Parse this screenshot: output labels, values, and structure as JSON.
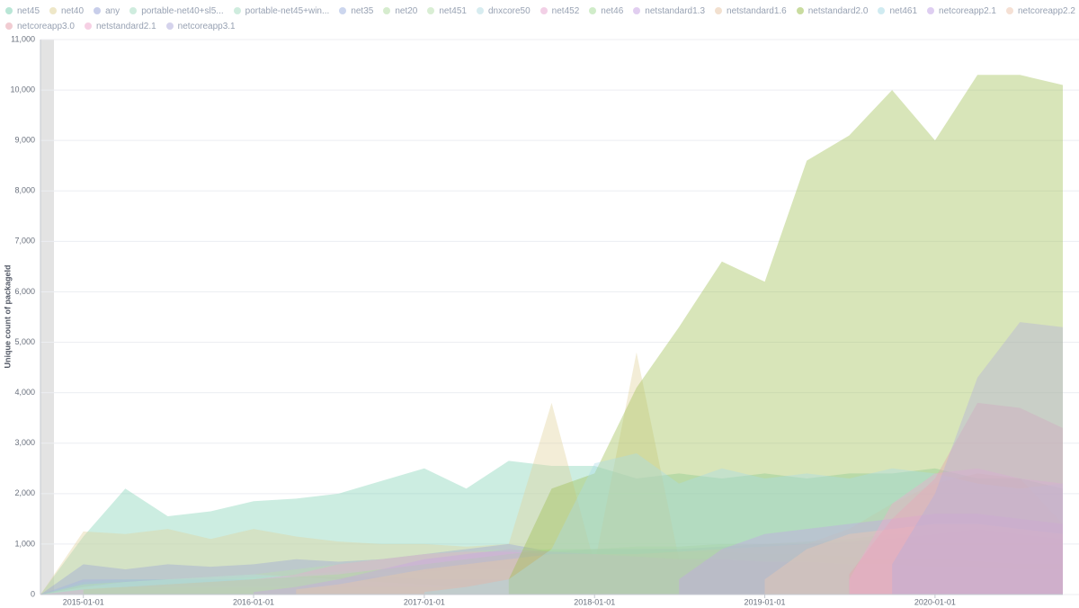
{
  "chart_data": {
    "type": "area",
    "y_label": "Unique count of packageId",
    "x": [
      "2014-10-01",
      "2015-01-01",
      "2015-04-01",
      "2015-07-01",
      "2015-10-01",
      "2016-01-01",
      "2016-04-01",
      "2016-07-01",
      "2016-10-01",
      "2017-01-01",
      "2017-04-01",
      "2017-07-01",
      "2017-10-01",
      "2018-01-01",
      "2018-04-01",
      "2018-07-01",
      "2018-10-01",
      "2019-01-01",
      "2019-04-01",
      "2019-07-01",
      "2019-10-01",
      "2020-01-01",
      "2020-04-01",
      "2020-07-01",
      "2020-10-01"
    ],
    "xlim": [
      "2014-10-01",
      "2020-10-01"
    ],
    "xticks": [
      "2015-01-01",
      "2016-01-01",
      "2017-01-01",
      "2018-01-01",
      "2019-01-01",
      "2020-01-01"
    ],
    "ylim": [
      0,
      11000
    ],
    "yticks": [
      0,
      {
        "value": 1000,
        "label": "1,000"
      },
      {
        "value": 2000,
        "label": "2,000"
      },
      {
        "value": 3000,
        "label": "3,000"
      },
      {
        "value": 4000,
        "label": "4,000"
      },
      {
        "value": 5000,
        "label": "5,000"
      },
      {
        "value": 6000,
        "label": "6,000"
      },
      {
        "value": 7000,
        "label": "7,000"
      },
      {
        "value": 8000,
        "label": "8,000"
      },
      {
        "value": 9000,
        "label": "9,000"
      },
      {
        "value": 10000,
        "label": "10,000"
      },
      {
        "value": 11000,
        "label": "11,000"
      }
    ],
    "grid": true,
    "series": [
      {
        "name": "net45",
        "color": "#7fd1b4",
        "values": [
          0,
          1150,
          2100,
          1550,
          1650,
          1850,
          1900,
          2000,
          2250,
          2500,
          2100,
          2650,
          2550,
          2550,
          2300,
          2400,
          2300,
          2400,
          2300,
          2400,
          2400,
          2500,
          2300,
          2300,
          2100
        ]
      },
      {
        "name": "net40",
        "color": "#e0d39b",
        "values": [
          0,
          1250,
          1200,
          1300,
          1100,
          1300,
          1150,
          1050,
          1000,
          1000,
          950,
          1000,
          3800,
          600,
          4800,
          700,
          600,
          500,
          500,
          400,
          400,
          400,
          300,
          300,
          300
        ]
      },
      {
        "name": "any",
        "color": "#9aa6d8",
        "values": [
          0,
          600,
          500,
          600,
          550,
          600,
          700,
          650,
          700,
          800,
          900,
          1000,
          850,
          900,
          900,
          900,
          950,
          1000,
          1000,
          1050,
          1100,
          1200,
          1300,
          1200,
          1100
        ]
      },
      {
        "name": "portable-net40+sl5...",
        "color": "#a8dcc2",
        "values": [
          0,
          250,
          300,
          300,
          300,
          350,
          400,
          450,
          500,
          500,
          550,
          550,
          500,
          450,
          400,
          400,
          350,
          350,
          300,
          300,
          300,
          250,
          250,
          200,
          200
        ]
      },
      {
        "name": "portable-net45+win...",
        "color": "#a8dcc2",
        "values": [
          0,
          200,
          250,
          300,
          300,
          350,
          400,
          400,
          450,
          450,
          500,
          500,
          450,
          400,
          400,
          350,
          350,
          300,
          300,
          300,
          250,
          250,
          200,
          200,
          200
        ]
      },
      {
        "name": "net35",
        "color": "#a3b5e0",
        "values": [
          0,
          300,
          300,
          300,
          300,
          300,
          350,
          350,
          350,
          300,
          300,
          300,
          300,
          300,
          300,
          250,
          250,
          250,
          250,
          200,
          200,
          200,
          200,
          200,
          200
        ]
      },
      {
        "name": "net20",
        "color": "#b4dca6",
        "values": [
          0,
          150,
          150,
          150,
          150,
          150,
          150,
          150,
          150,
          150,
          150,
          150,
          150,
          150,
          150,
          100,
          100,
          100,
          100,
          100,
          100,
          100,
          100,
          100,
          100
        ]
      },
      {
        "name": "net451",
        "color": "#b9e0b0",
        "values": [
          0,
          200,
          250,
          300,
          350,
          400,
          500,
          600,
          700,
          800,
          850,
          900,
          900,
          900,
          900,
          850,
          850,
          800,
          800,
          750,
          700,
          700,
          650,
          600,
          600
        ]
      },
      {
        "name": "dnxcore50",
        "color": "#b6dde3",
        "values": [
          0,
          150,
          250,
          300,
          350,
          400,
          350,
          300,
          250,
          200,
          150,
          100,
          100,
          100,
          50,
          50,
          50,
          50,
          50,
          50,
          50,
          50,
          50,
          50,
          50
        ]
      },
      {
        "name": "net452",
        "color": "#e8a9d2",
        "values": [
          0,
          100,
          150,
          200,
          250,
          300,
          400,
          600,
          700,
          800,
          850,
          850,
          800,
          800,
          750,
          700,
          700,
          650,
          650,
          600,
          600,
          550,
          550,
          500,
          500
        ]
      },
      {
        "name": "net46",
        "color": "#a9dc9c",
        "values": [
          null,
          100,
          150,
          200,
          250,
          300,
          350,
          400,
          500,
          600,
          700,
          800,
          900,
          900,
          950,
          950,
          1000,
          1000,
          1050,
          1100,
          1200,
          1200,
          1150,
          1100,
          1000
        ]
      },
      {
        "name": "netstandard1.3",
        "color": "#c9a5e3",
        "values": [
          null,
          null,
          null,
          null,
          null,
          50,
          150,
          300,
          500,
          700,
          800,
          900,
          850,
          800,
          750,
          700,
          700,
          650,
          650,
          600,
          600,
          550,
          550,
          500,
          500
        ]
      },
      {
        "name": "netstandard1.6",
        "color": "#e8c7a8",
        "values": [
          null,
          null,
          null,
          null,
          null,
          null,
          100,
          200,
          350,
          500,
          600,
          700,
          800,
          800,
          800,
          850,
          900,
          950,
          1000,
          1300,
          1800,
          2200,
          2400,
          2300,
          1400
        ]
      },
      {
        "name": "netstandard2.0",
        "color": "#9dbf50",
        "values": [
          null,
          null,
          null,
          null,
          null,
          null,
          null,
          null,
          null,
          null,
          null,
          300,
          2100,
          2400,
          4100,
          5300,
          6600,
          6200,
          8600,
          9100,
          10000,
          9000,
          10300,
          10300,
          10100
        ]
      },
      {
        "name": "net461",
        "color": "#a9dbe6",
        "values": [
          null,
          null,
          null,
          null,
          null,
          null,
          null,
          null,
          null,
          50,
          150,
          300,
          900,
          2600,
          2800,
          2200,
          2500,
          2300,
          2400,
          2300,
          2500,
          2400,
          2200,
          2100,
          2200
        ]
      },
      {
        "name": "netcoreapp2.1",
        "color": "#c2a6e6",
        "values": [
          null,
          null,
          null,
          null,
          null,
          null,
          null,
          null,
          null,
          null,
          null,
          null,
          null,
          null,
          null,
          300,
          900,
          1200,
          1300,
          1400,
          1500,
          1600,
          1600,
          1500,
          1400
        ]
      },
      {
        "name": "netcoreapp2.2",
        "color": "#edc7b1",
        "values": [
          null,
          null,
          null,
          null,
          null,
          null,
          null,
          null,
          null,
          null,
          null,
          null,
          null,
          null,
          null,
          null,
          null,
          300,
          900,
          1200,
          1300,
          1400,
          1400,
          1300,
          1200
        ]
      },
      {
        "name": "netcoreapp3.0",
        "color": "#e6a3ad",
        "values": [
          null,
          null,
          null,
          null,
          null,
          null,
          null,
          null,
          null,
          null,
          null,
          null,
          null,
          null,
          null,
          null,
          null,
          null,
          null,
          400,
          1500,
          2300,
          3800,
          3700,
          3300
        ]
      },
      {
        "name": "netstandard2.1",
        "color": "#efaacd",
        "values": [
          null,
          null,
          null,
          null,
          null,
          null,
          null,
          null,
          null,
          null,
          null,
          null,
          null,
          null,
          null,
          null,
          null,
          null,
          null,
          300,
          1800,
          2400,
          2500,
          2300,
          2200
        ]
      },
      {
        "name": "netcoreapp3.1",
        "color": "#b3aedc",
        "values": [
          null,
          null,
          null,
          null,
          null,
          null,
          null,
          null,
          null,
          null,
          null,
          null,
          null,
          null,
          null,
          null,
          null,
          null,
          null,
          null,
          600,
          2000,
          4300,
          5400,
          5300
        ]
      }
    ]
  }
}
